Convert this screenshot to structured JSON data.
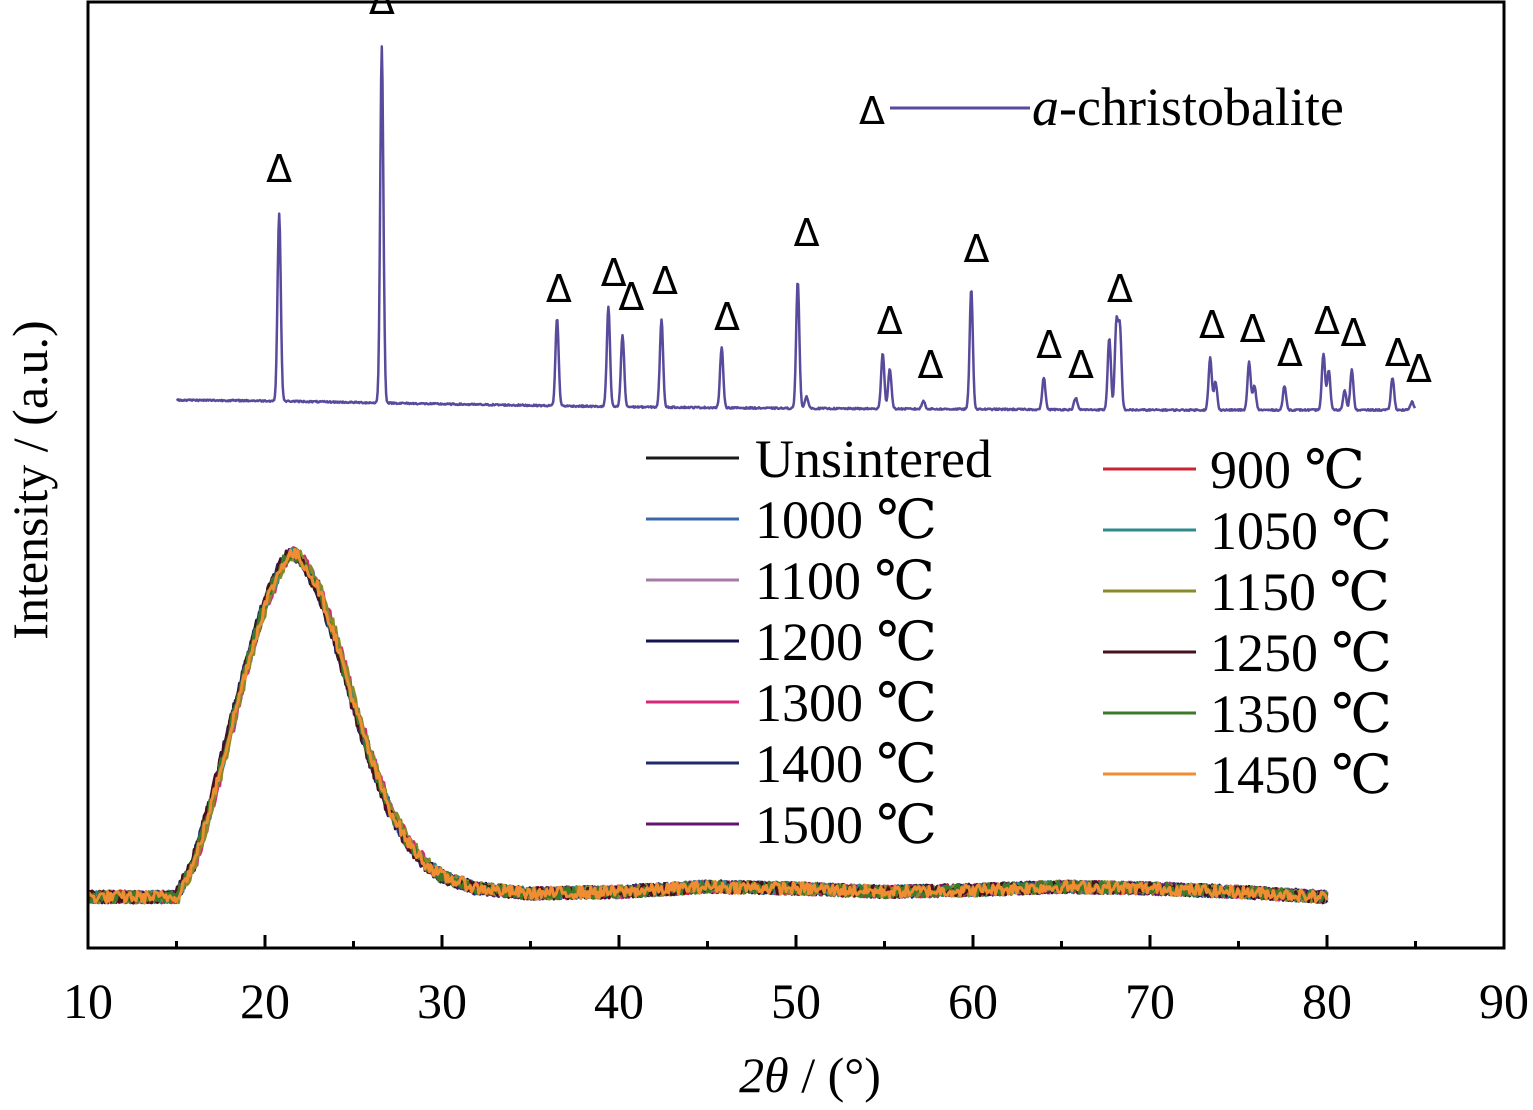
{
  "chart_data": {
    "type": "line",
    "xlabel_parts": {
      "italic": "2θ",
      "rest": " / (°)"
    },
    "ylabel": "Intensity / (a.u.)",
    "xlim": [
      10,
      90
    ],
    "xticks": [
      10,
      20,
      30,
      40,
      50,
      60,
      70,
      80,
      90
    ],
    "xtick_labels": [
      "10",
      "20",
      "30",
      "40",
      "50",
      "60",
      "70",
      "80",
      "90"
    ],
    "y_ticks_shown": false,
    "grid": false,
    "legend_position": "center-right",
    "reference": {
      "label_italic": "a",
      "label_rest": "-christobalite",
      "marker_symbol": "Δ",
      "color": "#5a4a9c",
      "x_range": [
        15,
        85
      ],
      "baseline_points": [
        [
          15,
          0.25
        ],
        [
          20,
          0.23
        ],
        [
          30,
          0.15
        ],
        [
          40,
          0.08
        ],
        [
          50,
          0.04
        ],
        [
          60,
          0.02
        ],
        [
          70,
          0.0
        ],
        [
          80,
          0.0
        ],
        [
          85,
          0.0
        ]
      ],
      "peaks": [
        {
          "x": 20.8,
          "height": 4.7
        },
        {
          "x": 26.6,
          "height": 8.9
        },
        {
          "x": 36.5,
          "height": 2.2
        },
        {
          "x": 39.4,
          "height": 2.5
        },
        {
          "x": 40.2,
          "height": 1.8
        },
        {
          "x": 42.4,
          "height": 2.2
        },
        {
          "x": 45.8,
          "height": 1.5
        },
        {
          "x": 50.1,
          "height": 3.2
        },
        {
          "x": 50.6,
          "height": 0.3
        },
        {
          "x": 54.9,
          "height": 1.4
        },
        {
          "x": 55.3,
          "height": 1.0
        },
        {
          "x": 57.2,
          "height": 0.2
        },
        {
          "x": 59.9,
          "height": 3.0
        },
        {
          "x": 64.0,
          "height": 0.8
        },
        {
          "x": 65.8,
          "height": 0.3
        },
        {
          "x": 67.7,
          "height": 1.8
        },
        {
          "x": 68.1,
          "height": 2.1
        },
        {
          "x": 68.3,
          "height": 2.0
        },
        {
          "x": 73.4,
          "height": 1.3
        },
        {
          "x": 73.7,
          "height": 0.7
        },
        {
          "x": 75.6,
          "height": 1.2
        },
        {
          "x": 75.9,
          "height": 0.6
        },
        {
          "x": 77.6,
          "height": 0.6
        },
        {
          "x": 79.8,
          "height": 1.4
        },
        {
          "x": 80.1,
          "height": 1.0
        },
        {
          "x": 81.0,
          "height": 0.5
        },
        {
          "x": 81.4,
          "height": 1.0
        },
        {
          "x": 83.7,
          "height": 0.8
        },
        {
          "x": 84.8,
          "height": 0.2
        }
      ],
      "markers": [
        {
          "x": 20.8,
          "level": 5.7
        },
        {
          "x": 26.6,
          "level": 9.9
        },
        {
          "x": 36.6,
          "level": 2.7
        },
        {
          "x": 39.7,
          "level": 3.1
        },
        {
          "x": 40.7,
          "level": 2.5
        },
        {
          "x": 42.6,
          "level": 2.9
        },
        {
          "x": 46.1,
          "level": 2.0
        },
        {
          "x": 50.6,
          "level": 4.1
        },
        {
          "x": 55.3,
          "level": 1.9
        },
        {
          "x": 57.6,
          "level": 0.8
        },
        {
          "x": 60.2,
          "level": 3.7
        },
        {
          "x": 64.3,
          "level": 1.3
        },
        {
          "x": 66.1,
          "level": 0.8
        },
        {
          "x": 68.3,
          "level": 2.7
        },
        {
          "x": 73.5,
          "level": 1.8
        },
        {
          "x": 75.8,
          "level": 1.7
        },
        {
          "x": 77.9,
          "level": 1.1
        },
        {
          "x": 80.0,
          "level": 1.9
        },
        {
          "x": 81.5,
          "level": 1.6
        },
        {
          "x": 84.0,
          "level": 1.1
        },
        {
          "x": 85.2,
          "level": 0.7
        }
      ]
    },
    "amorphous_profile": {
      "x_range": [
        10,
        80
      ],
      "points": [
        [
          10,
          0.0
        ],
        [
          15,
          0.0
        ],
        [
          16,
          0.2
        ],
        [
          17,
          0.55
        ],
        [
          18,
          0.95
        ],
        [
          19,
          1.35
        ],
        [
          20,
          1.7
        ],
        [
          21,
          1.94
        ],
        [
          21.5,
          2.0
        ],
        [
          22,
          1.97
        ],
        [
          23,
          1.8
        ],
        [
          24,
          1.5
        ],
        [
          25,
          1.13
        ],
        [
          26,
          0.8
        ],
        [
          27,
          0.52
        ],
        [
          28,
          0.33
        ],
        [
          29,
          0.2
        ],
        [
          30,
          0.12
        ],
        [
          32,
          0.05
        ],
        [
          35,
          0.02
        ],
        [
          40,
          0.03
        ],
        [
          45,
          0.06
        ],
        [
          50,
          0.05
        ],
        [
          55,
          0.03
        ],
        [
          60,
          0.04
        ],
        [
          65,
          0.06
        ],
        [
          70,
          0.05
        ],
        [
          75,
          0.03
        ],
        [
          80,
          0.0
        ]
      ]
    },
    "series": [
      {
        "name": "Unsintered",
        "color": "#1a1a1a"
      },
      {
        "name": "1000 ℃",
        "color": "#3b68a9"
      },
      {
        "name": "1100 ℃",
        "color": "#a57aa5"
      },
      {
        "name": "1200 ℃",
        "color": "#141450"
      },
      {
        "name": "1300 ℃",
        "color": "#d6287a"
      },
      {
        "name": "1400 ℃",
        "color": "#1e2a6e"
      },
      {
        "name": "1500 ℃",
        "color": "#64146e"
      },
      {
        "name": "900 ℃",
        "color": "#cc2232"
      },
      {
        "name": "1050 ℃",
        "color": "#2f8a8e"
      },
      {
        "name": "1150 ℃",
        "color": "#8a8a2a"
      },
      {
        "name": "1250 ℃",
        "color": "#46101c"
      },
      {
        "name": "1350 ℃",
        "color": "#3c7a2a"
      },
      {
        "name": "1450 ℃",
        "color": "#f08c32"
      }
    ]
  }
}
